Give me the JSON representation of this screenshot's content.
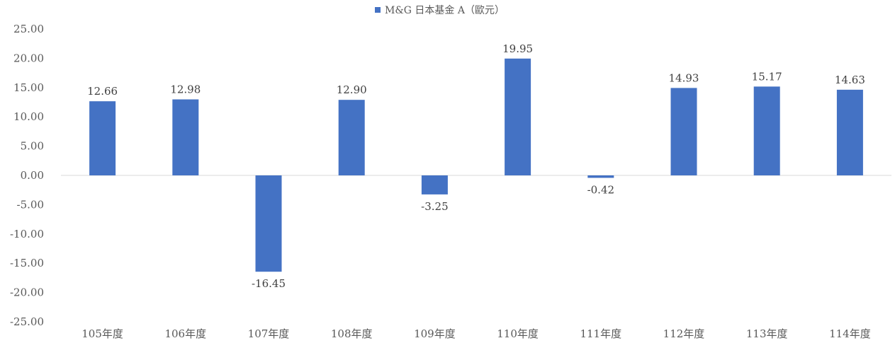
{
  "chart_data": {
    "type": "bar",
    "categories": [
      "105年度",
      "106年度",
      "107年度",
      "108年度",
      "109年度",
      "110年度",
      "111年度",
      "112年度",
      "113年度",
      "114年度"
    ],
    "series": [
      {
        "name": "M&G 日本基金 A（歐元）",
        "values": [
          12.66,
          12.98,
          -16.45,
          12.9,
          -3.25,
          19.95,
          -0.42,
          14.93,
          15.17,
          14.63
        ],
        "labels": [
          "12.66",
          "12.98",
          "-16.45",
          "12.90",
          "-3.25",
          "19.95",
          "-0.42",
          "14.93",
          "15.17",
          "14.63"
        ],
        "color": "#4472C4"
      }
    ],
    "yticks": [
      "25.00",
      "20.00",
      "15.00",
      "10.00",
      "5.00",
      "0.00",
      "-5.00",
      "-10.00",
      "-15.00",
      "-20.00",
      "-25.00"
    ],
    "ylim": [
      -25,
      25
    ],
    "ystep": 5,
    "grid": false,
    "legend_position": "top"
  }
}
